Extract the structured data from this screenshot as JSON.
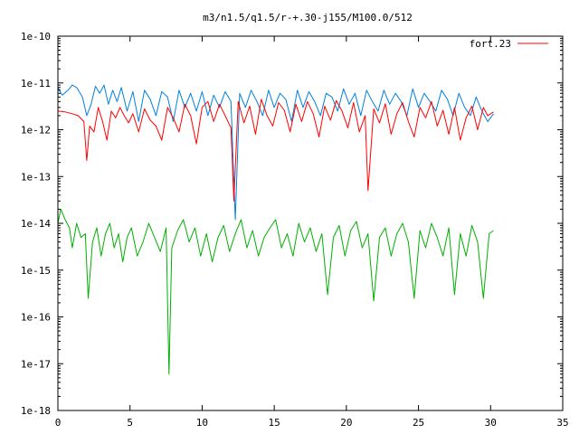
{
  "chart_data": {
    "type": "line",
    "title": "m3/n1.5/q1.5/r-+.30-j155/M100.0/512",
    "xlabel": "",
    "ylabel": "",
    "xlim": [
      0,
      35
    ],
    "ylim": [
      1e-18,
      1e-10
    ],
    "y_scale": "log",
    "grid": false,
    "legend_position": "top-right",
    "x_ticks": [
      0,
      5,
      10,
      15,
      20,
      25,
      30,
      35
    ],
    "x_tick_labels": [
      "0",
      "5",
      "10",
      "15",
      "20",
      "25",
      "30",
      "35"
    ],
    "y_ticks": [
      1e-18,
      1e-17,
      1e-16,
      1e-15,
      1e-14,
      1e-13,
      1e-12,
      1e-11,
      1e-10
    ],
    "y_tick_labels": [
      "1e-18",
      "1e-17",
      "1e-16",
      "1e-15",
      "1e-14",
      "1e-13",
      "1e-12",
      "1e-11",
      "1e-10"
    ],
    "series": [
      {
        "name": "fort.23",
        "color": "#ff0000",
        "x": [
          0,
          0.5,
          1.0,
          1.4,
          1.8,
          2.0,
          2.2,
          2.5,
          2.8,
          3.1,
          3.4,
          3.7,
          4.0,
          4.3,
          4.6,
          4.9,
          5.2,
          5.6,
          6.0,
          6.4,
          6.8,
          7.2,
          7.6,
          8.0,
          8.4,
          8.8,
          9.2,
          9.6,
          10.0,
          10.4,
          10.8,
          11.2,
          11.6,
          12.0,
          12.2,
          12.5,
          12.9,
          13.3,
          13.7,
          14.1,
          14.5,
          14.9,
          15.3,
          15.7,
          16.1,
          16.5,
          16.9,
          17.3,
          17.7,
          18.1,
          18.5,
          18.9,
          19.3,
          19.7,
          20.1,
          20.5,
          20.9,
          21.3,
          21.5,
          21.9,
          22.3,
          22.7,
          23.1,
          23.5,
          23.9,
          24.3,
          24.7,
          25.1,
          25.5,
          25.9,
          26.3,
          26.7,
          27.1,
          27.5,
          27.9,
          28.3,
          28.7,
          29.1,
          29.5,
          29.8,
          30.2
        ],
        "y": [
          2.5e-12,
          2.4e-12,
          2.2e-12,
          2e-12,
          1.5e-12,
          2.2e-13,
          1.2e-12,
          9e-13,
          3e-12,
          1.5e-12,
          6e-13,
          2.5e-12,
          1.8e-12,
          3e-12,
          2e-12,
          1.4e-12,
          2.2e-12,
          9e-13,
          2.8e-12,
          1.6e-12,
          1.2e-12,
          6e-13,
          3e-12,
          1.8e-12,
          9e-13,
          3.5e-12,
          2e-12,
          5e-13,
          3e-12,
          4e-12,
          1.5e-12,
          3.5e-12,
          2e-12,
          1.1e-12,
          3e-14,
          4e-12,
          1.4e-12,
          3.2e-12,
          8e-13,
          4.5e-12,
          2e-12,
          1.2e-12,
          3.8e-12,
          2.6e-12,
          9e-13,
          3.5e-12,
          1.5e-12,
          4e-12,
          2.2e-12,
          7e-13,
          3.2e-12,
          1.6e-12,
          4.2e-12,
          2.5e-12,
          1.1e-12,
          3.8e-12,
          9e-13,
          2e-12,
          5e-14,
          2.8e-12,
          1.4e-12,
          3.6e-12,
          8e-13,
          2.2e-12,
          3.8e-12,
          1.5e-12,
          7e-13,
          3e-12,
          1.8e-12,
          4e-12,
          1.2e-12,
          2.6e-12,
          8e-13,
          3e-12,
          6e-13,
          1.8e-12,
          3.2e-12,
          1e-12,
          3e-12,
          2e-12,
          2.4e-12
        ]
      },
      {
        "name": "",
        "color": "#0080e0",
        "x": [
          0,
          0.3,
          0.7,
          1.0,
          1.3,
          1.7,
          2.0,
          2.3,
          2.6,
          2.9,
          3.2,
          3.5,
          3.8,
          4.1,
          4.4,
          4.8,
          5.2,
          5.6,
          6.0,
          6.4,
          6.8,
          7.2,
          7.6,
          8.0,
          8.4,
          8.8,
          9.2,
          9.6,
          10.0,
          10.4,
          10.8,
          11.2,
          11.6,
          12.0,
          12.3,
          12.6,
          13.0,
          13.4,
          13.8,
          14.2,
          14.6,
          15.0,
          15.4,
          15.8,
          16.2,
          16.6,
          17.0,
          17.4,
          17.8,
          18.2,
          18.6,
          19.0,
          19.4,
          19.8,
          20.2,
          20.6,
          21.0,
          21.4,
          21.8,
          22.2,
          22.6,
          23.0,
          23.4,
          23.8,
          24.2,
          24.6,
          25.0,
          25.4,
          25.8,
          26.2,
          26.6,
          27.0,
          27.4,
          27.8,
          28.2,
          28.6,
          29.0,
          29.4,
          29.8,
          30.2
        ],
        "y": [
          8e-12,
          5.5e-12,
          7e-12,
          9e-12,
          8e-12,
          5e-12,
          2e-12,
          3.5e-12,
          8.5e-12,
          6e-12,
          9e-12,
          3.5e-12,
          7e-12,
          4e-12,
          8e-12,
          2.5e-12,
          6.5e-12,
          1.5e-12,
          7e-12,
          4.5e-12,
          2e-12,
          6.5e-12,
          5e-12,
          1.5e-12,
          7e-12,
          3e-12,
          6e-12,
          2.5e-12,
          6.5e-12,
          2e-12,
          5.5e-12,
          3e-12,
          6.5e-12,
          4e-12,
          1.2e-14,
          6e-12,
          3e-12,
          7e-12,
          4e-12,
          2e-12,
          7e-12,
          3e-12,
          6e-12,
          4.5e-12,
          1.5e-12,
          7e-12,
          3e-12,
          6.5e-12,
          4e-12,
          2e-12,
          6e-12,
          5e-12,
          2.5e-12,
          7.5e-12,
          3.5e-12,
          6e-12,
          2e-12,
          7e-12,
          4e-12,
          2.5e-12,
          7e-12,
          3.5e-12,
          6e-12,
          4e-12,
          2e-12,
          7.5e-12,
          3e-12,
          6e-12,
          4e-12,
          2.5e-12,
          7e-12,
          4.5e-12,
          2e-12,
          6e-12,
          3e-12,
          2e-12,
          5e-12,
          2.5e-12,
          1.5e-12,
          2.2e-12
        ]
      },
      {
        "name": "",
        "color": "#00b000",
        "x": [
          0,
          0.2,
          0.5,
          0.8,
          1.0,
          1.3,
          1.6,
          1.9,
          2.1,
          2.4,
          2.7,
          3.0,
          3.3,
          3.6,
          3.9,
          4.2,
          4.5,
          4.8,
          5.1,
          5.5,
          5.9,
          6.3,
          6.7,
          7.1,
          7.5,
          7.7,
          7.9,
          8.3,
          8.7,
          9.1,
          9.5,
          9.9,
          10.3,
          10.7,
          11.1,
          11.5,
          11.9,
          12.3,
          12.7,
          13.1,
          13.5,
          13.9,
          14.3,
          14.7,
          15.1,
          15.5,
          15.9,
          16.3,
          16.7,
          17.1,
          17.5,
          17.9,
          18.3,
          18.7,
          19.1,
          19.5,
          19.9,
          20.3,
          20.7,
          21.1,
          21.5,
          21.9,
          22.3,
          22.7,
          23.1,
          23.5,
          23.9,
          24.3,
          24.7,
          25.1,
          25.5,
          25.9,
          26.3,
          26.7,
          27.1,
          27.5,
          27.9,
          28.3,
          28.7,
          29.1,
          29.5,
          29.9,
          30.2
        ],
        "y": [
          1e-14,
          2e-14,
          1.2e-14,
          8e-15,
          3e-15,
          1e-14,
          5e-15,
          6e-15,
          2.5e-16,
          4e-15,
          8e-15,
          2e-15,
          6e-15,
          1e-14,
          3e-15,
          6e-15,
          1.5e-15,
          5e-15,
          8e-15,
          2e-15,
          4e-15,
          1e-14,
          5e-15,
          2.5e-15,
          8e-15,
          6e-18,
          3e-15,
          7e-15,
          1.2e-14,
          4e-15,
          8e-15,
          2e-15,
          6e-15,
          1.5e-15,
          5e-15,
          9e-15,
          2.5e-15,
          6e-15,
          1.2e-14,
          3e-15,
          7e-15,
          2e-15,
          5e-15,
          8e-15,
          1.2e-14,
          3e-15,
          6e-15,
          2e-15,
          1e-14,
          4e-15,
          8e-15,
          2.5e-15,
          6e-15,
          3e-16,
          5e-15,
          9e-15,
          2e-15,
          7e-15,
          1.1e-14,
          3e-15,
          6e-15,
          2.2e-16,
          5e-15,
          8e-15,
          2e-15,
          6e-15,
          1e-14,
          4e-15,
          2.5e-16,
          7e-15,
          3e-15,
          1e-14,
          5e-15,
          2e-15,
          8e-15,
          3e-16,
          6e-15,
          2e-15,
          9e-15,
          4e-15,
          2.5e-16,
          6e-15,
          7e-15
        ]
      }
    ]
  }
}
